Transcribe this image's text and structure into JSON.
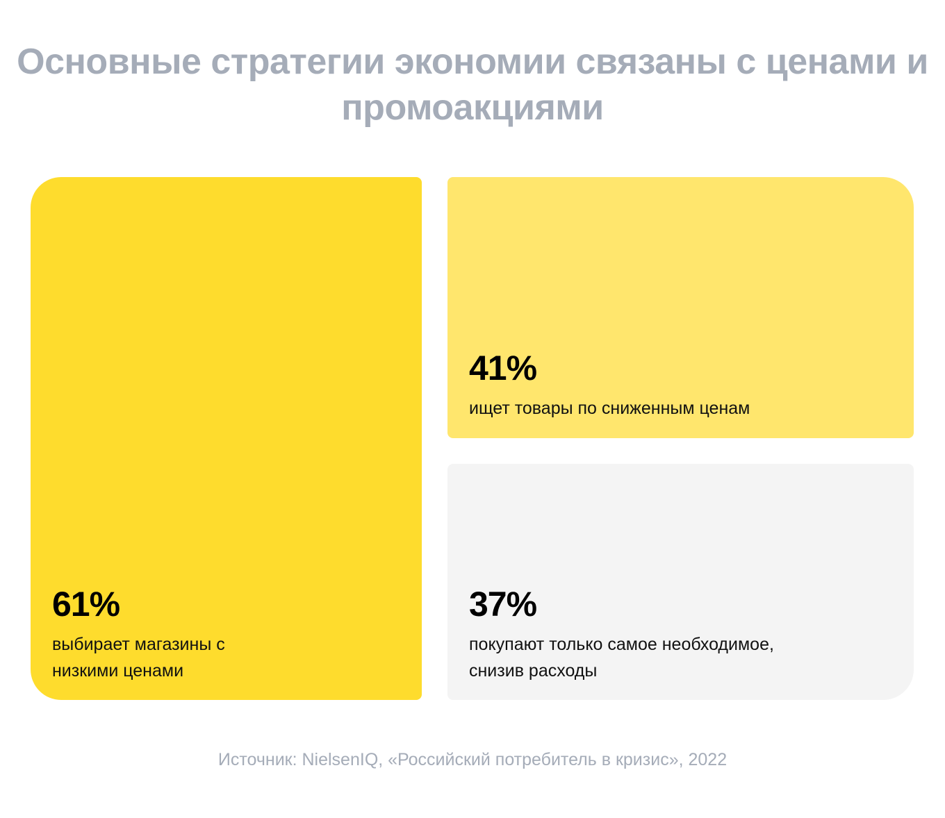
{
  "chart_data": {
    "type": "table",
    "title": "Основные стратегии экономии связаны с ценами и промоакциями",
    "items": [
      {
        "value": 61,
        "label": "61%",
        "description": "выбирает магазины с низкими ценами",
        "color": "#fedc2d"
      },
      {
        "value": 41,
        "label": "41%",
        "description": "ищет товары по сниженным ценам",
        "color": "#ffe66d"
      },
      {
        "value": 37,
        "label": "37%",
        "description": "покупают только самое необходимое, снизив расходы",
        "color": "#f4f4f4"
      }
    ],
    "source": "Источник: NielsenIQ, «Российский потребитель в кризис», 2022"
  }
}
